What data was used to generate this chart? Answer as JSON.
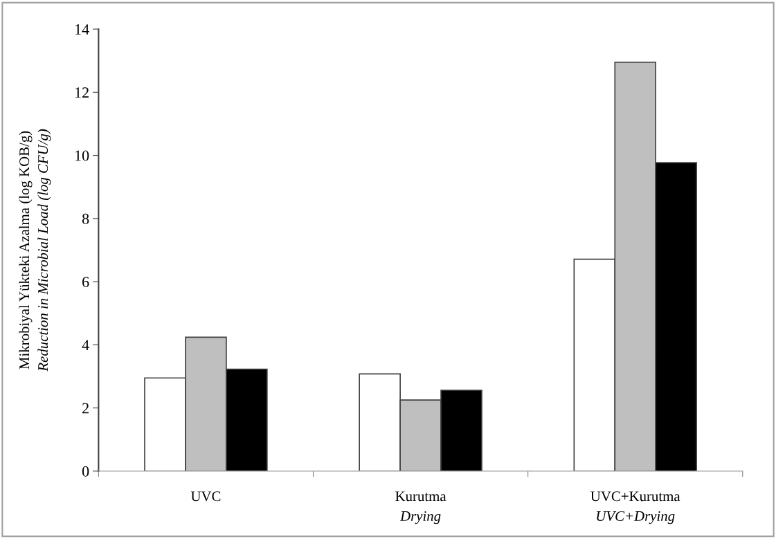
{
  "chart_data": {
    "type": "bar",
    "ylabel": "Mikrobiyal Yükteki Azalma (log KOB/g)\nReduction in Microbial Load (log CFU/g)",
    "categories": [
      "UVC",
      "Kurutma\nDrying",
      "UVC+Kurutma\nUVC+Drying"
    ],
    "series": [
      {
        "color": "#ffffff",
        "values": [
          2.95,
          3.08,
          6.71
        ]
      },
      {
        "color": "#bfbfbf",
        "values": [
          4.24,
          2.25,
          12.95
        ]
      },
      {
        "color": "#000000",
        "values": [
          3.23,
          2.56,
          9.77
        ]
      }
    ],
    "ylim": [
      0,
      14
    ],
    "yticks": [
      0,
      2,
      4,
      6,
      8,
      10,
      12,
      14
    ],
    "grid": false,
    "legend": false
  }
}
